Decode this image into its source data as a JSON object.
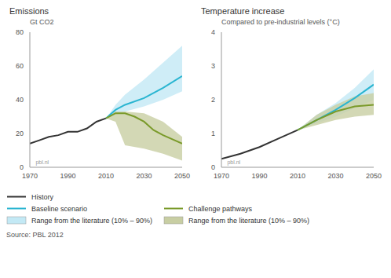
{
  "chart_data": [
    {
      "type": "line",
      "title": "Emissions",
      "subtitle": "Gt CO2",
      "xlim": [
        1970,
        2050
      ],
      "xticks": [
        1970,
        1990,
        2010,
        2030,
        2050
      ],
      "ylim": [
        0,
        80
      ],
      "yticks": [
        0,
        20,
        40,
        60,
        80
      ],
      "grid": false,
      "annotations": [
        {
          "text": "pbl.nl",
          "x": 1971,
          "y": 3
        }
      ],
      "series": [
        {
          "name": "History",
          "type": "line",
          "color": "#333333",
          "x": [
            1970,
            1975,
            1980,
            1985,
            1990,
            1995,
            2000,
            2005,
            2010
          ],
          "values": [
            14,
            16,
            18,
            19,
            21,
            21,
            23,
            27,
            29
          ]
        },
        {
          "name": "Baseline scenario",
          "type": "line",
          "color": "#2ab5d1",
          "x": [
            2010,
            2015,
            2020,
            2030,
            2040,
            2050
          ],
          "values": [
            29,
            34,
            37,
            41,
            47,
            54
          ]
        },
        {
          "name": "Range from the literature (10% – 90%)",
          "type": "area",
          "color": "#c3e9f5",
          "x": [
            2010,
            2015,
            2020,
            2030,
            2040,
            2050
          ],
          "values": [
            [
              29,
              29
            ],
            [
              31,
              37
            ],
            [
              33,
              43
            ],
            [
              36,
              52
            ],
            [
              40,
              62
            ],
            [
              45,
              72
            ]
          ]
        },
        {
          "name": "Challenge pathways",
          "type": "line",
          "color": "#7a9a2a",
          "x": [
            2010,
            2015,
            2020,
            2025,
            2030,
            2035,
            2040,
            2050
          ],
          "values": [
            29,
            32,
            32,
            30,
            27,
            22,
            19,
            14
          ]
        },
        {
          "name": "Range from the literature (10% – 90%)",
          "type": "area",
          "color": "#c8cea3",
          "x": [
            2010,
            2015,
            2020,
            2030,
            2040,
            2050
          ],
          "values": [
            [
              29,
              29
            ],
            [
              27,
              33
            ],
            [
              13,
              33
            ],
            [
              11,
              32
            ],
            [
              8,
              27
            ],
            [
              4,
              18
            ]
          ]
        }
      ]
    },
    {
      "type": "line",
      "title": "Temperature increase",
      "subtitle": "Compared to pre-industrial levels (°C)",
      "xlim": [
        1970,
        2050
      ],
      "xticks": [
        1970,
        1990,
        2010,
        2030,
        2050
      ],
      "ylim": [
        0,
        4
      ],
      "yticks": [
        0,
        1,
        2,
        3,
        4
      ],
      "grid": false,
      "annotations": [
        {
          "text": "pbl.nl",
          "x": 1971,
          "y": 0.15
        }
      ],
      "series": [
        {
          "name": "History",
          "type": "line",
          "color": "#333333",
          "x": [
            1970,
            1980,
            1990,
            2000,
            2010
          ],
          "values": [
            0.25,
            0.4,
            0.6,
            0.85,
            1.1
          ]
        },
        {
          "name": "Baseline scenario",
          "type": "line",
          "color": "#2ab5d1",
          "x": [
            2010,
            2020,
            2030,
            2040,
            2050
          ],
          "values": [
            1.1,
            1.4,
            1.7,
            2.05,
            2.45
          ]
        },
        {
          "name": "Range from the literature (10% – 90%)",
          "type": "area",
          "color": "#c3e9f5",
          "x": [
            2010,
            2020,
            2030,
            2040,
            2050
          ],
          "values": [
            [
              1.1,
              1.1
            ],
            [
              1.3,
              1.55
            ],
            [
              1.5,
              1.9
            ],
            [
              1.75,
              2.35
            ],
            [
              2.0,
              2.9
            ]
          ]
        },
        {
          "name": "Challenge pathways",
          "type": "line",
          "color": "#7a9a2a",
          "x": [
            2010,
            2020,
            2030,
            2040,
            2050
          ],
          "values": [
            1.1,
            1.4,
            1.65,
            1.8,
            1.85
          ]
        },
        {
          "name": "Range from the literature (10% – 90%)",
          "type": "area",
          "color": "#c8cea3",
          "x": [
            2010,
            2020,
            2030,
            2040,
            2050
          ],
          "values": [
            [
              1.1,
              1.1
            ],
            [
              1.25,
              1.55
            ],
            [
              1.4,
              1.85
            ],
            [
              1.5,
              2.1
            ],
            [
              1.55,
              2.2
            ]
          ]
        }
      ]
    }
  ],
  "source": "Source: PBL 2012"
}
